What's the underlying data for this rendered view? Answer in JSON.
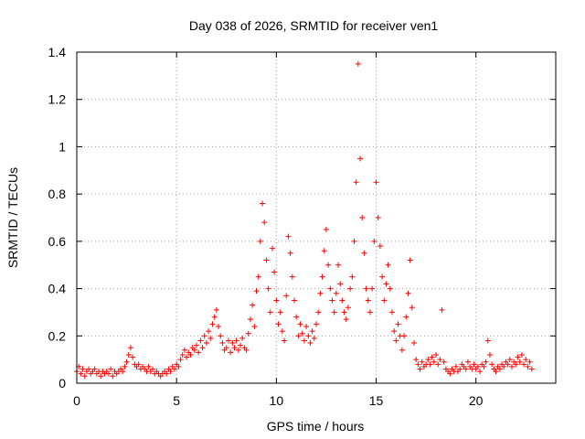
{
  "chart_data": {
    "type": "scatter",
    "title": "Day 038 of 2026, SRMTID for receiver ven1",
    "xlabel": "GPS time / hours",
    "ylabel": "SRMTID / TECUs",
    "xlim": [
      0,
      24
    ],
    "ylim": [
      0,
      1.4
    ],
    "x_ticks": [
      0,
      5,
      10,
      15,
      20
    ],
    "x_tick_labels": [
      "0",
      "5",
      "10",
      "15",
      "20"
    ],
    "y_ticks": [
      0,
      0.2,
      0.4,
      0.6,
      0.8,
      1,
      1.2,
      1.4
    ],
    "y_tick_labels": [
      "0",
      "0.2",
      "0.4",
      "0.6",
      "0.8",
      "1",
      "1.2",
      "1.4"
    ],
    "grid": true,
    "marker": "plus",
    "color": "#ff0000",
    "series": [
      {
        "name": "SRMTID",
        "points": [
          [
            0.0,
            0.05
          ],
          [
            0.1,
            0.07
          ],
          [
            0.2,
            0.04
          ],
          [
            0.3,
            0.06
          ],
          [
            0.4,
            0.03
          ],
          [
            0.5,
            0.05
          ],
          [
            0.6,
            0.06
          ],
          [
            0.7,
            0.04
          ],
          [
            0.8,
            0.05
          ],
          [
            0.9,
            0.06
          ],
          [
            1.0,
            0.04
          ],
          [
            1.1,
            0.05
          ],
          [
            1.2,
            0.03
          ],
          [
            1.3,
            0.05
          ],
          [
            1.4,
            0.04
          ],
          [
            1.5,
            0.05
          ],
          [
            1.6,
            0.04
          ],
          [
            1.7,
            0.06
          ],
          [
            1.8,
            0.03
          ],
          [
            1.9,
            0.05
          ],
          [
            2.0,
            0.04
          ],
          [
            2.1,
            0.05
          ],
          [
            2.2,
            0.06
          ],
          [
            2.3,
            0.05
          ],
          [
            2.4,
            0.07
          ],
          [
            2.5,
            0.09
          ],
          [
            2.6,
            0.12
          ],
          [
            2.7,
            0.15
          ],
          [
            2.8,
            0.11
          ],
          [
            2.9,
            0.08
          ],
          [
            3.0,
            0.07
          ],
          [
            3.1,
            0.08
          ],
          [
            3.2,
            0.06
          ],
          [
            3.3,
            0.07
          ],
          [
            3.4,
            0.06
          ],
          [
            3.5,
            0.05
          ],
          [
            3.6,
            0.07
          ],
          [
            3.7,
            0.05
          ],
          [
            3.8,
            0.06
          ],
          [
            3.9,
            0.04
          ],
          [
            4.0,
            0.05
          ],
          [
            4.1,
            0.04
          ],
          [
            4.2,
            0.03
          ],
          [
            4.3,
            0.04
          ],
          [
            4.4,
            0.05
          ],
          [
            4.5,
            0.04
          ],
          [
            4.6,
            0.06
          ],
          [
            4.7,
            0.05
          ],
          [
            4.8,
            0.07
          ],
          [
            4.9,
            0.06
          ],
          [
            5.0,
            0.08
          ],
          [
            5.1,
            0.07
          ],
          [
            5.2,
            0.1
          ],
          [
            5.3,
            0.12
          ],
          [
            5.4,
            0.14
          ],
          [
            5.5,
            0.11
          ],
          [
            5.6,
            0.13
          ],
          [
            5.7,
            0.12
          ],
          [
            5.8,
            0.15
          ],
          [
            5.9,
            0.14
          ],
          [
            6.0,
            0.16
          ],
          [
            6.1,
            0.13
          ],
          [
            6.2,
            0.18
          ],
          [
            6.3,
            0.15
          ],
          [
            6.4,
            0.2
          ],
          [
            6.5,
            0.17
          ],
          [
            6.6,
            0.22
          ],
          [
            6.7,
            0.19
          ],
          [
            6.8,
            0.25
          ],
          [
            6.9,
            0.28
          ],
          [
            7.0,
            0.31
          ],
          [
            7.1,
            0.24
          ],
          [
            7.2,
            0.2
          ],
          [
            7.3,
            0.17
          ],
          [
            7.4,
            0.14
          ],
          [
            7.5,
            0.15
          ],
          [
            7.6,
            0.18
          ],
          [
            7.7,
            0.13
          ],
          [
            7.8,
            0.17
          ],
          [
            7.9,
            0.15
          ],
          [
            8.0,
            0.18
          ],
          [
            8.1,
            0.14
          ],
          [
            8.2,
            0.16
          ],
          [
            8.3,
            0.19
          ],
          [
            8.4,
            0.15
          ],
          [
            8.5,
            0.14
          ],
          [
            8.6,
            0.21
          ],
          [
            8.7,
            0.27
          ],
          [
            8.8,
            0.33
          ],
          [
            8.9,
            0.24
          ],
          [
            9.0,
            0.39
          ],
          [
            9.1,
            0.45
          ],
          [
            9.2,
            0.6
          ],
          [
            9.3,
            0.76
          ],
          [
            9.4,
            0.68
          ],
          [
            9.5,
            0.52
          ],
          [
            9.6,
            0.4
          ],
          [
            9.7,
            0.3
          ],
          [
            9.8,
            0.57
          ],
          [
            9.9,
            0.47
          ],
          [
            10.0,
            0.35
          ],
          [
            10.1,
            0.25
          ],
          [
            10.2,
            0.3
          ],
          [
            10.3,
            0.22
          ],
          [
            10.4,
            0.18
          ],
          [
            10.5,
            0.37
          ],
          [
            10.6,
            0.62
          ],
          [
            10.7,
            0.55
          ],
          [
            10.8,
            0.45
          ],
          [
            10.9,
            0.35
          ],
          [
            11.0,
            0.28
          ],
          [
            11.1,
            0.2
          ],
          [
            11.2,
            0.25
          ],
          [
            11.3,
            0.21
          ],
          [
            11.4,
            0.18
          ],
          [
            11.5,
            0.24
          ],
          [
            11.6,
            0.2
          ],
          [
            11.7,
            0.17
          ],
          [
            11.8,
            0.22
          ],
          [
            11.9,
            0.19
          ],
          [
            12.0,
            0.25
          ],
          [
            12.1,
            0.3
          ],
          [
            12.2,
            0.38
          ],
          [
            12.3,
            0.45
          ],
          [
            12.4,
            0.56
          ],
          [
            12.5,
            0.65
          ],
          [
            12.6,
            0.5
          ],
          [
            12.7,
            0.4
          ],
          [
            12.8,
            0.35
          ],
          [
            12.9,
            0.3
          ],
          [
            13.0,
            0.38
          ],
          [
            13.1,
            0.5
          ],
          [
            13.2,
            0.42
          ],
          [
            13.3,
            0.35
          ],
          [
            13.4,
            0.3
          ],
          [
            13.5,
            0.27
          ],
          [
            13.6,
            0.32
          ],
          [
            13.7,
            0.4
          ],
          [
            13.8,
            0.45
          ],
          [
            13.9,
            0.6
          ],
          [
            14.0,
            0.85
          ],
          [
            14.1,
            1.35
          ],
          [
            14.2,
            0.95
          ],
          [
            14.3,
            0.7
          ],
          [
            14.4,
            0.55
          ],
          [
            14.5,
            0.4
          ],
          [
            14.6,
            0.35
          ],
          [
            14.7,
            0.3
          ],
          [
            14.8,
            0.4
          ],
          [
            14.9,
            0.6
          ],
          [
            15.0,
            0.85
          ],
          [
            15.1,
            0.7
          ],
          [
            15.2,
            0.58
          ],
          [
            15.3,
            0.45
          ],
          [
            15.4,
            0.35
          ],
          [
            15.5,
            0.42
          ],
          [
            15.6,
            0.5
          ],
          [
            15.7,
            0.4
          ],
          [
            15.8,
            0.3
          ],
          [
            15.9,
            0.22
          ],
          [
            16.0,
            0.18
          ],
          [
            16.1,
            0.25
          ],
          [
            16.2,
            0.2
          ],
          [
            16.3,
            0.14
          ],
          [
            16.4,
            0.2
          ],
          [
            16.5,
            0.28
          ],
          [
            16.6,
            0.38
          ],
          [
            16.7,
            0.52
          ],
          [
            16.8,
            0.32
          ],
          [
            16.9,
            0.17
          ],
          [
            17.0,
            0.1
          ],
          [
            17.1,
            0.08
          ],
          [
            17.2,
            0.06
          ],
          [
            17.3,
            0.09
          ],
          [
            17.4,
            0.07
          ],
          [
            17.5,
            0.08
          ],
          [
            17.6,
            0.1
          ],
          [
            17.7,
            0.08
          ],
          [
            17.8,
            0.11
          ],
          [
            17.9,
            0.09
          ],
          [
            18.0,
            0.12
          ],
          [
            18.1,
            0.08
          ],
          [
            18.2,
            0.1
          ],
          [
            18.3,
            0.31
          ],
          [
            18.4,
            0.09
          ],
          [
            18.5,
            0.06
          ],
          [
            18.6,
            0.05
          ],
          [
            18.7,
            0.04
          ],
          [
            18.8,
            0.06
          ],
          [
            18.9,
            0.05
          ],
          [
            19.0,
            0.07
          ],
          [
            19.1,
            0.05
          ],
          [
            19.2,
            0.06
          ],
          [
            19.3,
            0.08
          ],
          [
            19.4,
            0.07
          ],
          [
            19.5,
            0.06
          ],
          [
            19.6,
            0.09
          ],
          [
            19.7,
            0.07
          ],
          [
            19.8,
            0.06
          ],
          [
            19.9,
            0.08
          ],
          [
            20.0,
            0.06
          ],
          [
            20.1,
            0.07
          ],
          [
            20.2,
            0.05
          ],
          [
            20.3,
            0.08
          ],
          [
            20.4,
            0.07
          ],
          [
            20.5,
            0.09
          ],
          [
            20.6,
            0.18
          ],
          [
            20.7,
            0.12
          ],
          [
            20.8,
            0.08
          ],
          [
            20.9,
            0.06
          ],
          [
            21.0,
            0.05
          ],
          [
            21.1,
            0.07
          ],
          [
            21.2,
            0.06
          ],
          [
            21.3,
            0.08
          ],
          [
            21.4,
            0.07
          ],
          [
            21.5,
            0.09
          ],
          [
            21.6,
            0.08
          ],
          [
            21.7,
            0.1
          ],
          [
            21.8,
            0.07
          ],
          [
            21.9,
            0.09
          ],
          [
            22.0,
            0.08
          ],
          [
            22.1,
            0.11
          ],
          [
            22.2,
            0.09
          ],
          [
            22.3,
            0.12
          ],
          [
            22.4,
            0.08
          ],
          [
            22.5,
            0.1
          ],
          [
            22.6,
            0.07
          ],
          [
            22.7,
            0.09
          ],
          [
            22.8,
            0.06
          ]
        ]
      }
    ]
  }
}
